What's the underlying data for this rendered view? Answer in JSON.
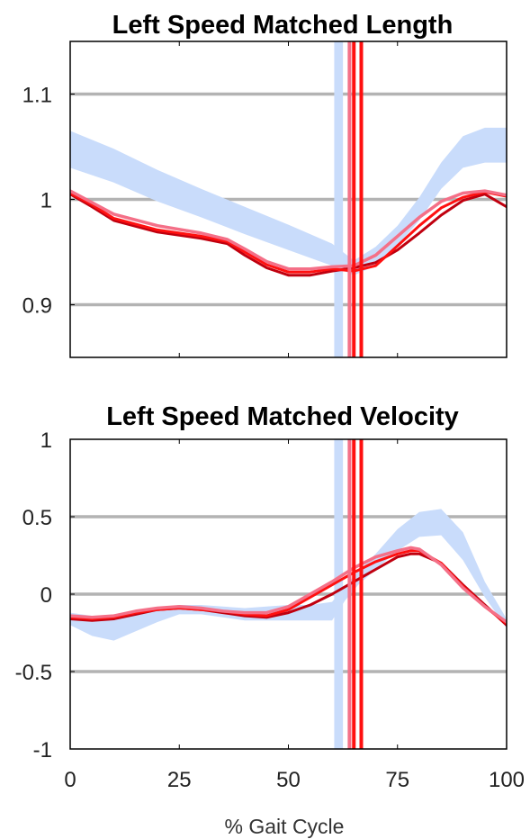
{
  "xlabel": "% Gait Cycle",
  "colors": {
    "band": "#c9dcfb",
    "grid": "#b3b3b3",
    "dark_red": "#c0000f",
    "pink": "#f47088",
    "bright_red": "#ff1010"
  },
  "chart_data": [
    {
      "type": "line",
      "title": "Left Speed Matched Length",
      "xlabel": "",
      "ylabel": "",
      "xlim": [
        0,
        100
      ],
      "ylim": [
        0.85,
        1.15
      ],
      "xticks": [
        0,
        25,
        50,
        75,
        100
      ],
      "yticks": [
        0.9,
        1,
        1.1
      ],
      "yticklabels": [
        "0.9",
        "1",
        "1.1"
      ],
      "grid_y": [
        0.9,
        1,
        1.1
      ],
      "vertical_band": {
        "x": [
          60.5,
          62.5
        ]
      },
      "vertical_lines": [
        {
          "x": 64.0,
          "color": "pink"
        },
        {
          "x": 65.0,
          "color": "bright_red"
        },
        {
          "x": 66.7,
          "color": "bright_red"
        }
      ],
      "band": {
        "x": [
          0,
          10,
          20,
          30,
          40,
          50,
          60,
          65,
          70,
          75,
          80,
          85,
          90,
          95,
          100
        ],
        "upper": [
          1.065,
          1.048,
          1.028,
          1.01,
          0.993,
          0.976,
          0.958,
          0.942,
          0.955,
          0.975,
          1.002,
          1.035,
          1.06,
          1.068,
          1.068
        ],
        "lower": [
          1.03,
          1.016,
          0.998,
          0.983,
          0.967,
          0.952,
          0.937,
          0.928,
          0.937,
          0.956,
          0.98,
          1.01,
          1.03,
          1.035,
          1.035
        ]
      },
      "series": [
        {
          "color": "dark_red",
          "x": [
            0,
            5,
            10,
            20,
            30,
            36,
            40,
            45,
            50,
            55,
            60,
            65,
            70,
            75,
            80,
            85,
            90,
            95,
            100
          ],
          "y": [
            1.005,
            0.993,
            0.98,
            0.969,
            0.963,
            0.958,
            0.947,
            0.935,
            0.928,
            0.928,
            0.932,
            0.935,
            0.94,
            0.952,
            0.968,
            0.985,
            0.999,
            1.005,
            0.993
          ]
        },
        {
          "color": "bright_red",
          "x": [
            0,
            5,
            10,
            20,
            30,
            36,
            40,
            45,
            50,
            55,
            60,
            65,
            70,
            75,
            80,
            85,
            90,
            95,
            100
          ],
          "y": [
            1.006,
            0.995,
            0.982,
            0.971,
            0.965,
            0.96,
            0.95,
            0.938,
            0.931,
            0.931,
            0.934,
            0.932,
            0.937,
            0.956,
            0.975,
            0.992,
            1.002,
            1.007,
            1.003
          ]
        },
        {
          "color": "pink",
          "x": [
            0,
            5,
            10,
            20,
            30,
            36,
            40,
            45,
            50,
            55,
            60,
            65,
            70,
            75,
            80,
            85,
            90,
            95,
            100
          ],
          "y": [
            1.008,
            0.997,
            0.986,
            0.975,
            0.968,
            0.962,
            0.953,
            0.941,
            0.934,
            0.934,
            0.936,
            0.937,
            0.947,
            0.965,
            0.983,
            0.998,
            1.006,
            1.008,
            1.004
          ]
        }
      ]
    },
    {
      "type": "line",
      "title": "Left Speed Matched Velocity",
      "xlabel": "% Gait Cycle",
      "ylabel": "",
      "xlim": [
        0,
        100
      ],
      "ylim": [
        -1,
        1
      ],
      "xticks": [
        0,
        25,
        50,
        75,
        100
      ],
      "xticklabels": [
        "0",
        "25",
        "50",
        "75",
        "100"
      ],
      "yticks": [
        -1,
        -0.5,
        0,
        0.5,
        1
      ],
      "yticklabels": [
        "-1",
        "-0.5",
        "0",
        "0.5",
        "1"
      ],
      "grid_y": [
        -0.5,
        0,
        0.5
      ],
      "vertical_band": {
        "x": [
          60.5,
          62.5
        ]
      },
      "vertical_lines": [
        {
          "x": 64.0,
          "color": "pink"
        },
        {
          "x": 65.0,
          "color": "bright_red"
        },
        {
          "x": 66.7,
          "color": "bright_red"
        }
      ],
      "band": {
        "x": [
          0,
          5,
          10,
          15,
          20,
          25,
          30,
          35,
          40,
          45,
          50,
          55,
          60,
          63,
          66,
          70,
          75,
          80,
          85,
          90,
          95,
          100
        ],
        "upper": [
          -0.12,
          -0.14,
          -0.15,
          -0.12,
          -0.09,
          -0.07,
          -0.07,
          -0.08,
          -0.09,
          -0.08,
          -0.07,
          -0.07,
          -0.05,
          0.05,
          0.15,
          0.26,
          0.42,
          0.53,
          0.55,
          0.4,
          0.08,
          -0.16
        ],
        "lower": [
          -0.2,
          -0.27,
          -0.3,
          -0.24,
          -0.18,
          -0.13,
          -0.13,
          -0.15,
          -0.17,
          -0.17,
          -0.17,
          -0.17,
          -0.17,
          -0.04,
          0.06,
          0.16,
          0.28,
          0.37,
          0.38,
          0.22,
          -0.02,
          -0.22
        ]
      },
      "series": [
        {
          "color": "dark_red",
          "x": [
            0,
            5,
            10,
            15,
            20,
            25,
            30,
            35,
            40,
            45,
            50,
            55,
            60,
            65,
            70,
            75,
            78,
            80,
            85,
            90,
            95,
            100
          ],
          "y": [
            -0.16,
            -0.17,
            -0.16,
            -0.13,
            -0.1,
            -0.09,
            -0.1,
            -0.12,
            -0.14,
            -0.15,
            -0.12,
            -0.07,
            0.0,
            0.08,
            0.16,
            0.24,
            0.26,
            0.26,
            0.2,
            0.06,
            -0.07,
            -0.2
          ]
        },
        {
          "color": "bright_red",
          "x": [
            0,
            5,
            10,
            15,
            20,
            25,
            30,
            35,
            40,
            45,
            50,
            55,
            60,
            65,
            70,
            75,
            78,
            80,
            85,
            90,
            95,
            100
          ],
          "y": [
            -0.15,
            -0.16,
            -0.15,
            -0.12,
            -0.1,
            -0.09,
            -0.1,
            -0.11,
            -0.13,
            -0.14,
            -0.1,
            -0.02,
            0.06,
            0.14,
            0.21,
            0.26,
            0.28,
            0.28,
            0.2,
            0.05,
            -0.08,
            -0.19
          ]
        },
        {
          "color": "pink",
          "x": [
            0,
            5,
            10,
            15,
            20,
            25,
            30,
            35,
            40,
            45,
            50,
            55,
            60,
            65,
            70,
            75,
            78,
            80,
            85,
            90,
            95,
            100
          ],
          "y": [
            -0.14,
            -0.15,
            -0.14,
            -0.11,
            -0.09,
            -0.08,
            -0.09,
            -0.11,
            -0.12,
            -0.12,
            -0.08,
            0.0,
            0.08,
            0.17,
            0.24,
            0.28,
            0.3,
            0.29,
            0.19,
            0.04,
            -0.08,
            -0.18
          ]
        }
      ]
    }
  ]
}
